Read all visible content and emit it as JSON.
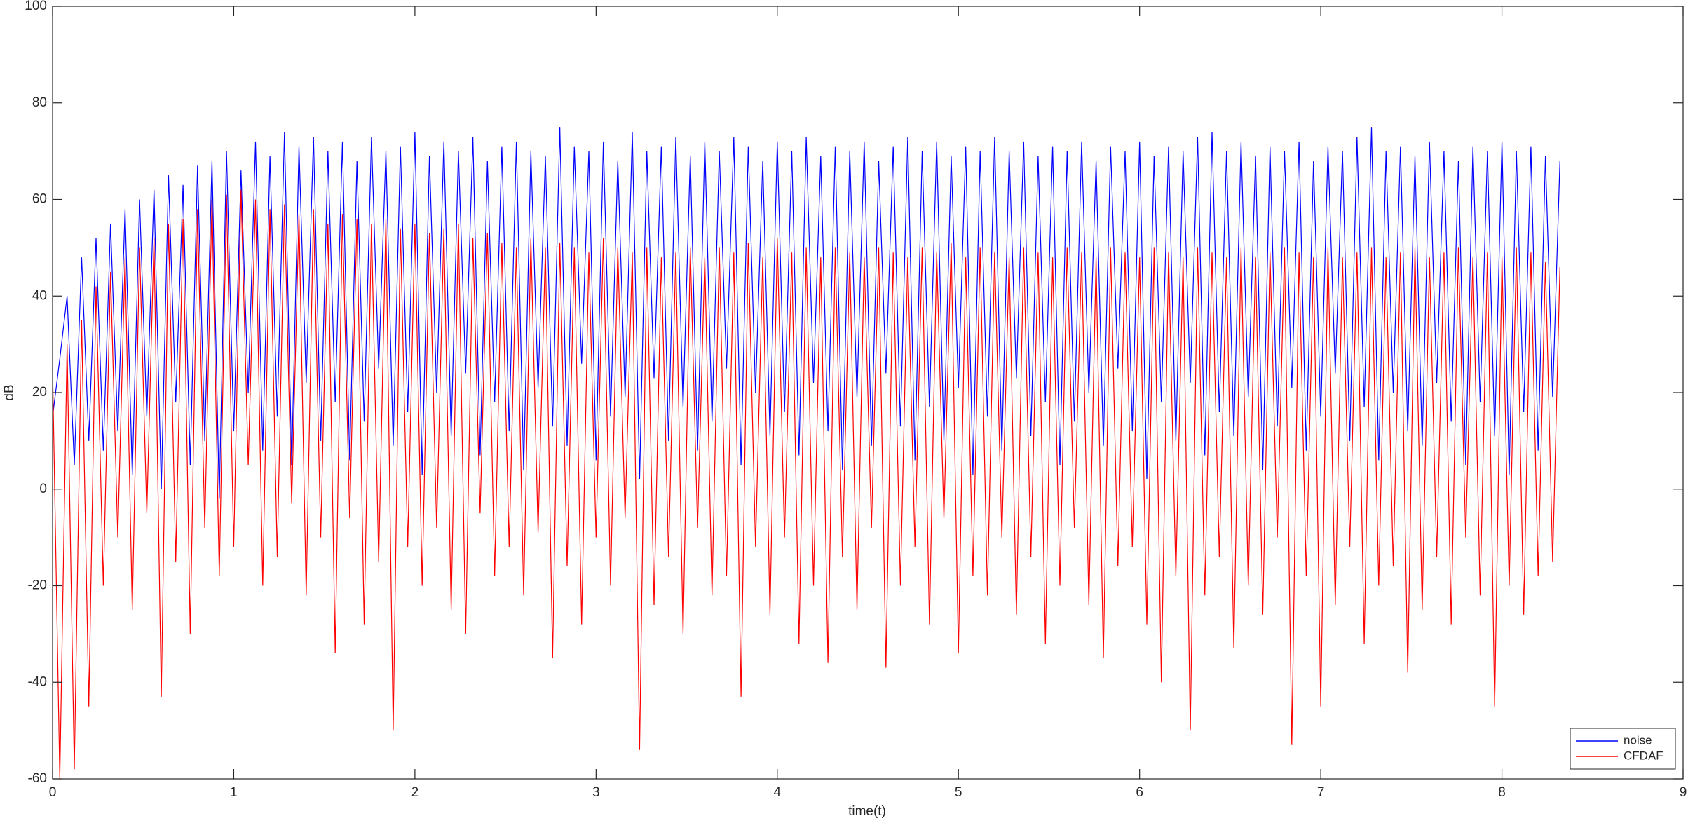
{
  "chart_data": {
    "type": "line",
    "xlabel": "time(t)",
    "ylabel": "dB",
    "xlim": [
      0,
      9
    ],
    "xticks": [
      0,
      1,
      2,
      3,
      4,
      5,
      6,
      7,
      8,
      9
    ],
    "ylim": [
      -60,
      100
    ],
    "yticks": [
      -60,
      -40,
      -20,
      0,
      20,
      40,
      60,
      80,
      100
    ],
    "grid": false,
    "legend": "southeast",
    "x": [
      0,
      0.04,
      0.08,
      0.12,
      0.16,
      0.2,
      0.24,
      0.28,
      0.32,
      0.36,
      0.4,
      0.44,
      0.48,
      0.52,
      0.56,
      0.6,
      0.64,
      0.68,
      0.72,
      0.76,
      0.8,
      0.84,
      0.88,
      0.92,
      0.96,
      1,
      1.04,
      1.08,
      1.12,
      1.16,
      1.2,
      1.24,
      1.28,
      1.32,
      1.36,
      1.4,
      1.44,
      1.48,
      1.52,
      1.56,
      1.6,
      1.64,
      1.68,
      1.72,
      1.76,
      1.8,
      1.84,
      1.88,
      1.92,
      1.96,
      2,
      2.04,
      2.08,
      2.12,
      2.16,
      2.2,
      2.24,
      2.28,
      2.32,
      2.36,
      2.4,
      2.44,
      2.48,
      2.52,
      2.56,
      2.6,
      2.64,
      2.68,
      2.72,
      2.76,
      2.8,
      2.84,
      2.88,
      2.92,
      2.96,
      3,
      3.04,
      3.08,
      3.12,
      3.16,
      3.2,
      3.24,
      3.28,
      3.32,
      3.36,
      3.4,
      3.44,
      3.48,
      3.52,
      3.56,
      3.6,
      3.64,
      3.68,
      3.72,
      3.76,
      3.8,
      3.84,
      3.88,
      3.92,
      3.96,
      4,
      4.04,
      4.08,
      4.12,
      4.16,
      4.2,
      4.24,
      4.28,
      4.32,
      4.36,
      4.4,
      4.44,
      4.48,
      4.52,
      4.56,
      4.6,
      4.64,
      4.68,
      4.72,
      4.76,
      4.8,
      4.84,
      4.88,
      4.92,
      4.96,
      5,
      5.04,
      5.08,
      5.12,
      5.16,
      5.2,
      5.24,
      5.28,
      5.32,
      5.36,
      5.4,
      5.44,
      5.48,
      5.52,
      5.56,
      5.6,
      5.64,
      5.68,
      5.72,
      5.76,
      5.8,
      5.84,
      5.88,
      5.92,
      5.96,
      6,
      6.04,
      6.08,
      6.12,
      6.16,
      6.2,
      6.24,
      6.28,
      6.32,
      6.36,
      6.4,
      6.44,
      6.48,
      6.52,
      6.56,
      6.6,
      6.64,
      6.68,
      6.72,
      6.76,
      6.8,
      6.84,
      6.88,
      6.92,
      6.96,
      7,
      7.04,
      7.08,
      7.12,
      7.16,
      7.2,
      7.24,
      7.28,
      7.32,
      7.36,
      7.4,
      7.44,
      7.48,
      7.52,
      7.56,
      7.6,
      7.64,
      7.68,
      7.72,
      7.76,
      7.8,
      7.84,
      7.88,
      7.92,
      7.96,
      8,
      8.04,
      8.08,
      8.12,
      8.16,
      8.2,
      8.24,
      8.28,
      8.32
    ],
    "series": [
      {
        "name": "noise",
        "color": "#0000ff",
        "values": [
          15,
          27,
          40,
          5,
          48,
          10,
          52,
          8,
          55,
          12,
          58,
          3,
          60,
          15,
          62,
          0,
          65,
          18,
          63,
          5,
          67,
          10,
          68,
          -2,
          70,
          12,
          66,
          20,
          72,
          8,
          69,
          15,
          74,
          5,
          71,
          22,
          73,
          10,
          70,
          18,
          72,
          6,
          68,
          14,
          73,
          25,
          70,
          9,
          71,
          16,
          74,
          3,
          69,
          20,
          72,
          11,
          70,
          24,
          73,
          7,
          68,
          18,
          71,
          12,
          72,
          4,
          70,
          21,
          69,
          13,
          75,
          9,
          71,
          26,
          70,
          6,
          72,
          15,
          68,
          19,
          74,
          2,
          70,
          23,
          71,
          10,
          73,
          17,
          69,
          8,
          72,
          14,
          70,
          25,
          73,
          5,
          71,
          20,
          68,
          11,
          72,
          16,
          70,
          7,
          73,
          22,
          69,
          12,
          71,
          4,
          70,
          19,
          72,
          9,
          68,
          24,
          71,
          13,
          73,
          6,
          70,
          17,
          72,
          10,
          69,
          21,
          71,
          3,
          70,
          15,
          73,
          8,
          70,
          23,
          72,
          11,
          69,
          18,
          71,
          5,
          70,
          14,
          72,
          20,
          68,
          9,
          71,
          25,
          70,
          12,
          72,
          2,
          69,
          18,
          71,
          10,
          70,
          22,
          73,
          7,
          74,
          16,
          70,
          11,
          72,
          19,
          69,
          4,
          71,
          13,
          70,
          21,
          72,
          8,
          68,
          15,
          71,
          24,
          70,
          10,
          73,
          17,
          75,
          6,
          70,
          20,
          71,
          12,
          69,
          9,
          72,
          22,
          70,
          14,
          68,
          5,
          71,
          18,
          70,
          11,
          72,
          3,
          70,
          16,
          71,
          8,
          69,
          19,
          68
        ]
      },
      {
        "name": "CFDAF",
        "color": "#ff0000",
        "values": [
          25,
          -60,
          30,
          -58,
          35,
          -45,
          42,
          -20,
          45,
          -10,
          48,
          -25,
          50,
          -5,
          52,
          -43,
          55,
          -15,
          56,
          -30,
          58,
          -8,
          60,
          -18,
          61,
          -12,
          62,
          5,
          60,
          -20,
          58,
          -14,
          59,
          -3,
          57,
          -22,
          58,
          -10,
          55,
          -34,
          57,
          -6,
          56,
          -28,
          55,
          -15,
          56,
          -50,
          54,
          -12,
          55,
          -20,
          53,
          -8,
          54,
          -25,
          55,
          -30,
          52,
          -5,
          53,
          -18,
          51,
          -12,
          50,
          -22,
          52,
          -9,
          50,
          -35,
          51,
          -16,
          50,
          -28,
          49,
          -10,
          52,
          -20,
          50,
          -6,
          49,
          -54,
          50,
          -24,
          48,
          -14,
          49,
          -30,
          50,
          -8,
          48,
          -22,
          50,
          -18,
          49,
          -43,
          51,
          -12,
          48,
          -26,
          52,
          -10,
          49,
          -32,
          50,
          -20,
          48,
          -36,
          50,
          -14,
          49,
          -25,
          48,
          -8,
          50,
          -37,
          49,
          -20,
          48,
          -12,
          50,
          -28,
          49,
          -6,
          51,
          -34,
          48,
          -18,
          50,
          -22,
          49,
          -10,
          48,
          -26,
          50,
          -14,
          49,
          -32,
          48,
          -20,
          50,
          -8,
          49,
          -24,
          48,
          -35,
          50,
          -16,
          49,
          -12,
          48,
          -28,
          50,
          -40,
          49,
          -18,
          48,
          -50,
          50,
          -22,
          49,
          -14,
          48,
          -33,
          50,
          -20,
          48,
          -26,
          49,
          -10,
          50,
          -53,
          49,
          -18,
          48,
          -45,
          50,
          -24,
          48,
          -12,
          49,
          -32,
          50,
          -20,
          48,
          -16,
          49,
          -38,
          50,
          -25,
          48,
          -14,
          49,
          -28,
          50,
          -10,
          48,
          -22,
          49,
          -45,
          48,
          -20,
          50,
          -26,
          49,
          -18,
          47,
          -15,
          46
        ]
      }
    ]
  }
}
